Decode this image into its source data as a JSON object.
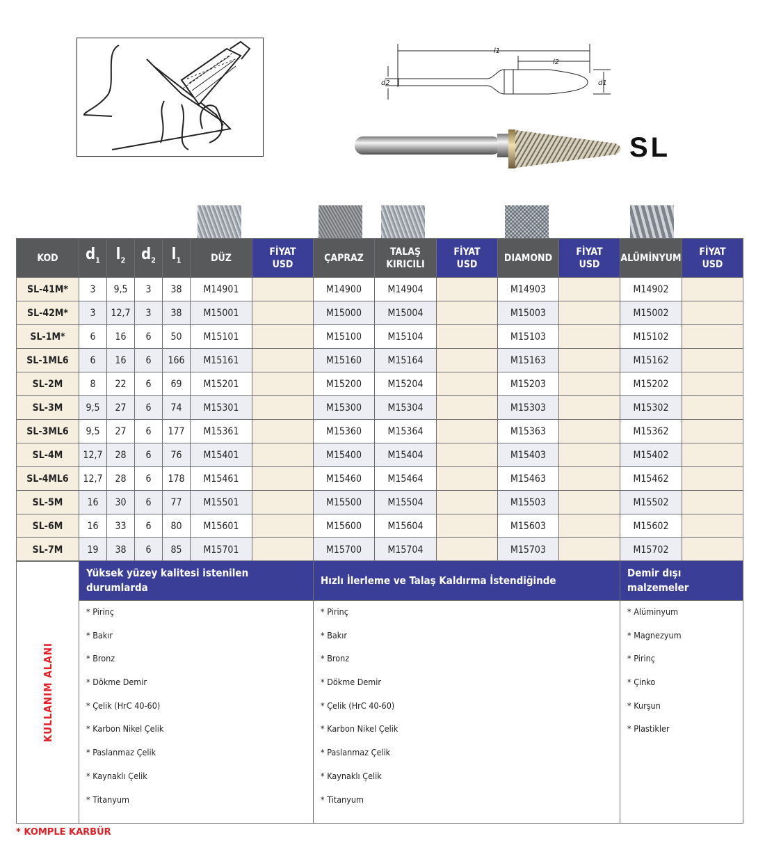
{
  "product": {
    "series": "SL",
    "dim_labels": {
      "l1": "l1",
      "l2": "l2",
      "d1": "d1",
      "d2": "d2"
    }
  },
  "table": {
    "headers": [
      {
        "key": "kod",
        "label": "KOD"
      },
      {
        "key": "d1",
        "label": "d",
        "sub": "1"
      },
      {
        "key": "l2",
        "label": "l",
        "sub": "2"
      },
      {
        "key": "d2",
        "label": "d",
        "sub": "2"
      },
      {
        "key": "l1",
        "label": "l",
        "sub": "1"
      },
      {
        "key": "duz",
        "label": "DÜZ"
      },
      {
        "key": "p1",
        "label": "FİYAT USD",
        "blue": true
      },
      {
        "key": "capraz",
        "label": "ÇAPRAZ"
      },
      {
        "key": "talas",
        "label": "TALAŞ KIRICILI"
      },
      {
        "key": "p2",
        "label": "FİYAT USD",
        "blue": true
      },
      {
        "key": "diamond",
        "label": "DIAMOND"
      },
      {
        "key": "p3",
        "label": "FİYAT USD",
        "blue": true
      },
      {
        "key": "alu",
        "label": "ALÜMİNYUM"
      },
      {
        "key": "p4",
        "label": "FİYAT USD",
        "blue": true
      }
    ],
    "rows": [
      [
        "SL-41M*",
        "3",
        "9,5",
        "3",
        "38",
        "M14901",
        "",
        "M14900",
        "M14904",
        "",
        "M14903",
        "",
        "M14902",
        ""
      ],
      [
        "SL-42M*",
        "3",
        "12,7",
        "3",
        "38",
        "M15001",
        "",
        "M15000",
        "M15004",
        "",
        "M15003",
        "",
        "M15002",
        ""
      ],
      [
        "SL-1M*",
        "6",
        "16",
        "6",
        "50",
        "M15101",
        "",
        "M15100",
        "M15104",
        "",
        "M15103",
        "",
        "M15102",
        ""
      ],
      [
        "SL-1ML6",
        "6",
        "16",
        "6",
        "166",
        "M15161",
        "",
        "M15160",
        "M15164",
        "",
        "M15163",
        "",
        "M15162",
        ""
      ],
      [
        "SL-2M",
        "8",
        "22",
        "6",
        "69",
        "M15201",
        "",
        "M15200",
        "M15204",
        "",
        "M15203",
        "",
        "M15202",
        ""
      ],
      [
        "SL-3M",
        "9,5",
        "27",
        "6",
        "74",
        "M15301",
        "",
        "M15300",
        "M15304",
        "",
        "M15303",
        "",
        "M15302",
        ""
      ],
      [
        "SL-3ML6",
        "9,5",
        "27",
        "6",
        "177",
        "M15361",
        "",
        "M15360",
        "M15364",
        "",
        "M15363",
        "",
        "M15362",
        ""
      ],
      [
        "SL-4M",
        "12,7",
        "28",
        "6",
        "76",
        "M15401",
        "",
        "M15400",
        "M15404",
        "",
        "M15403",
        "",
        "M15402",
        ""
      ],
      [
        "SL-4ML6",
        "12,7",
        "28",
        "6",
        "178",
        "M15461",
        "",
        "M15460",
        "M15464",
        "",
        "M15463",
        "",
        "M15462",
        ""
      ],
      [
        "SL-5M",
        "16",
        "30",
        "6",
        "77",
        "M15501",
        "",
        "M15500",
        "M15504",
        "",
        "M15503",
        "",
        "M15502",
        ""
      ],
      [
        "SL-6M",
        "16",
        "33",
        "6",
        "80",
        "M15601",
        "",
        "M15600",
        "M15604",
        "",
        "M15603",
        "",
        "M15602",
        ""
      ],
      [
        "SL-7M",
        "19",
        "38",
        "6",
        "85",
        "M15701",
        "",
        "M15700",
        "M15704",
        "",
        "M15703",
        "",
        "M15702",
        ""
      ]
    ]
  },
  "usage": {
    "title": "KULLANIM ALANI",
    "groups": [
      {
        "heading": "Yüksek yüzey kalitesi istenilen durumlarda",
        "items": [
          "* Pirinç",
          "* Bakır",
          "* Bronz",
          "* Dökme Demir",
          "* Çelik (HrC 40-60)",
          "* Karbon Nikel Çelik",
          "* Paslanmaz Çelik",
          "* Kaynaklı Çelik",
          "* Titanyum"
        ]
      },
      {
        "heading": "Hızlı İlerleme ve Talaş Kaldırma İstendiğinde",
        "items": [
          "* Pirinç",
          "* Bakır",
          "* Bronz",
          "* Dökme Demir",
          "* Çelik (HrC 40-60)",
          "* Karbon Nikel Çelik",
          "* Paslanmaz Çelik",
          "* Kaynaklı Çelik",
          "* Titanyum"
        ]
      },
      {
        "heading": "Demir dışı malzemeler",
        "items": [
          "* Alüminyum",
          "* Magnezyum",
          "* Pirinç",
          "* Çinko",
          "* Kurşun",
          "* Plastikler"
        ]
      }
    ]
  },
  "footnote": "* KOMPLE KARBÜR",
  "colors": {
    "header_gray": "#58595b",
    "price_blue": "#3b3e96",
    "cream": "#f6eedf",
    "accent_red": "#e31e24"
  }
}
